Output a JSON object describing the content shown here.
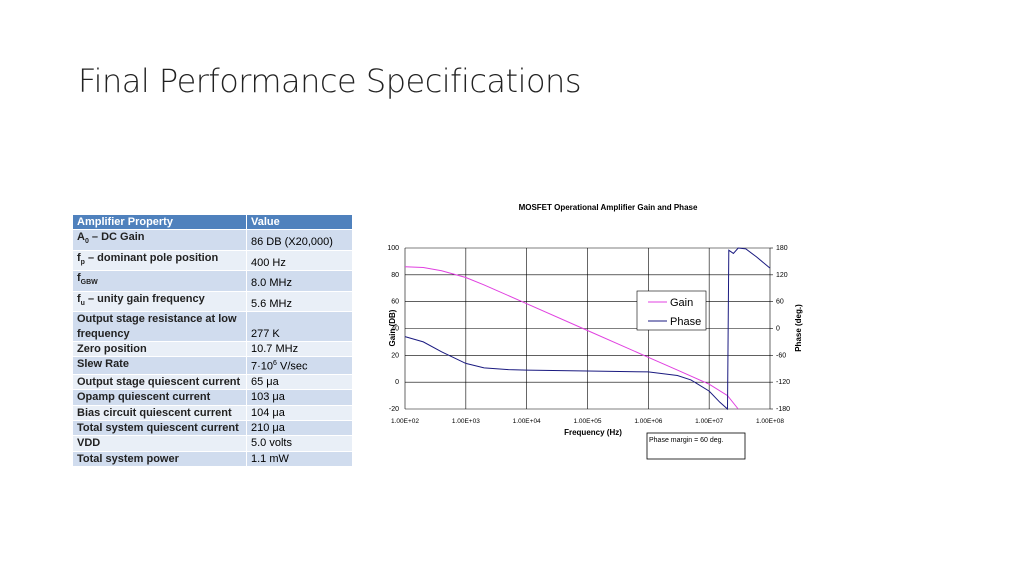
{
  "slide": {
    "title": "Final Performance Specifications"
  },
  "table": {
    "header": [
      "Amplifier Property",
      "Value"
    ],
    "rows": [
      [
        [
          {
            "text": "A"
          },
          {
            "sub": "0"
          },
          {
            "text": " – DC Gain"
          }
        ],
        "86 DB (X20,000)"
      ],
      [
        [
          {
            "text": "f"
          },
          {
            "sub": "p"
          },
          {
            "text": " – dominant pole position"
          }
        ],
        "400 Hz"
      ],
      [
        [
          {
            "text": "f"
          },
          {
            "sub": "GBW"
          }
        ],
        "8.0 MHz"
      ],
      [
        [
          {
            "text": "f"
          },
          {
            "sub": "u"
          },
          {
            "text": " – unity gain frequency"
          }
        ],
        "5.6 MHz"
      ],
      [
        "Output stage resistance at low frequency",
        "277 K"
      ],
      [
        "Zero position",
        "10.7 MHz"
      ],
      [
        "Slew Rate",
        [
          {
            "text": "7·10"
          },
          {
            "sup": "6"
          },
          {
            "text": " V/sec"
          }
        ]
      ],
      [
        "Output stage quiescent current",
        "65 μa"
      ],
      [
        "Opamp quiescent current",
        "103 μa"
      ],
      [
        "Bias circuit quiescent current",
        "104 μa"
      ],
      [
        "Total system quiescent current",
        "210 μa"
      ],
      [
        "VDD",
        "5.0 volts"
      ],
      [
        "Total system power",
        "1.1 mW"
      ]
    ]
  },
  "chart_data": {
    "type": "line",
    "title": "MOSFET Operational Amplifier Gain and Phase",
    "x_label": "Frequency (Hz)",
    "y_label": "Gain (DB)",
    "y2_label": "Phase (deg.)",
    "xlog": true,
    "grid": true,
    "xlim": [
      100,
      100000000
    ],
    "xticks": [
      {
        "value": 100,
        "label": "1.00E+02"
      },
      {
        "value": 1000,
        "label": "1.00E+03"
      },
      {
        "value": 10000,
        "label": "1.00E+04"
      },
      {
        "value": 100000,
        "label": "1.00E+05"
      },
      {
        "value": 1000000,
        "label": "1.00E+06"
      },
      {
        "value": 10000000,
        "label": "1.00E+07"
      },
      {
        "value": 100000000,
        "label": "1.00E+08"
      }
    ],
    "ylim": [
      -20,
      100
    ],
    "yticks": [
      -20,
      0,
      20,
      40,
      60,
      80,
      100
    ],
    "y2lim": [
      -180,
      180
    ],
    "y2ticks": [
      -180,
      -120,
      -60,
      0,
      60,
      120,
      180
    ],
    "legend": "center-right",
    "series": [
      {
        "name": "Gain",
        "color": "#e040e0",
        "x": [
          100,
          200,
          400,
          1000,
          2000,
          10000,
          100000,
          1000000,
          3000000,
          10000000,
          20000000,
          30000000
        ],
        "values": [
          86,
          85.5,
          83,
          78,
          72.5,
          58.5,
          38.5,
          18.5,
          9,
          -1.5,
          -10,
          -20
        ]
      },
      {
        "name": "Phase",
        "color": "#1a1a80",
        "axis": "y2",
        "x": [
          100,
          200,
          400,
          1000,
          2000,
          5000,
          10000,
          100000,
          1000000,
          3000000,
          5000000,
          10000000,
          15000000,
          20000000,
          21000000,
          25000000,
          30000000,
          40000000,
          60000000,
          100000000
        ],
        "values": [
          -18,
          -30,
          -52,
          -78,
          -88,
          -92,
          -93,
          -95,
          -97,
          -105,
          -115,
          -140,
          -165,
          -180,
          175,
          168,
          180,
          178,
          160,
          135
        ]
      }
    ],
    "annotation": "Phase margin = 60 deg."
  }
}
